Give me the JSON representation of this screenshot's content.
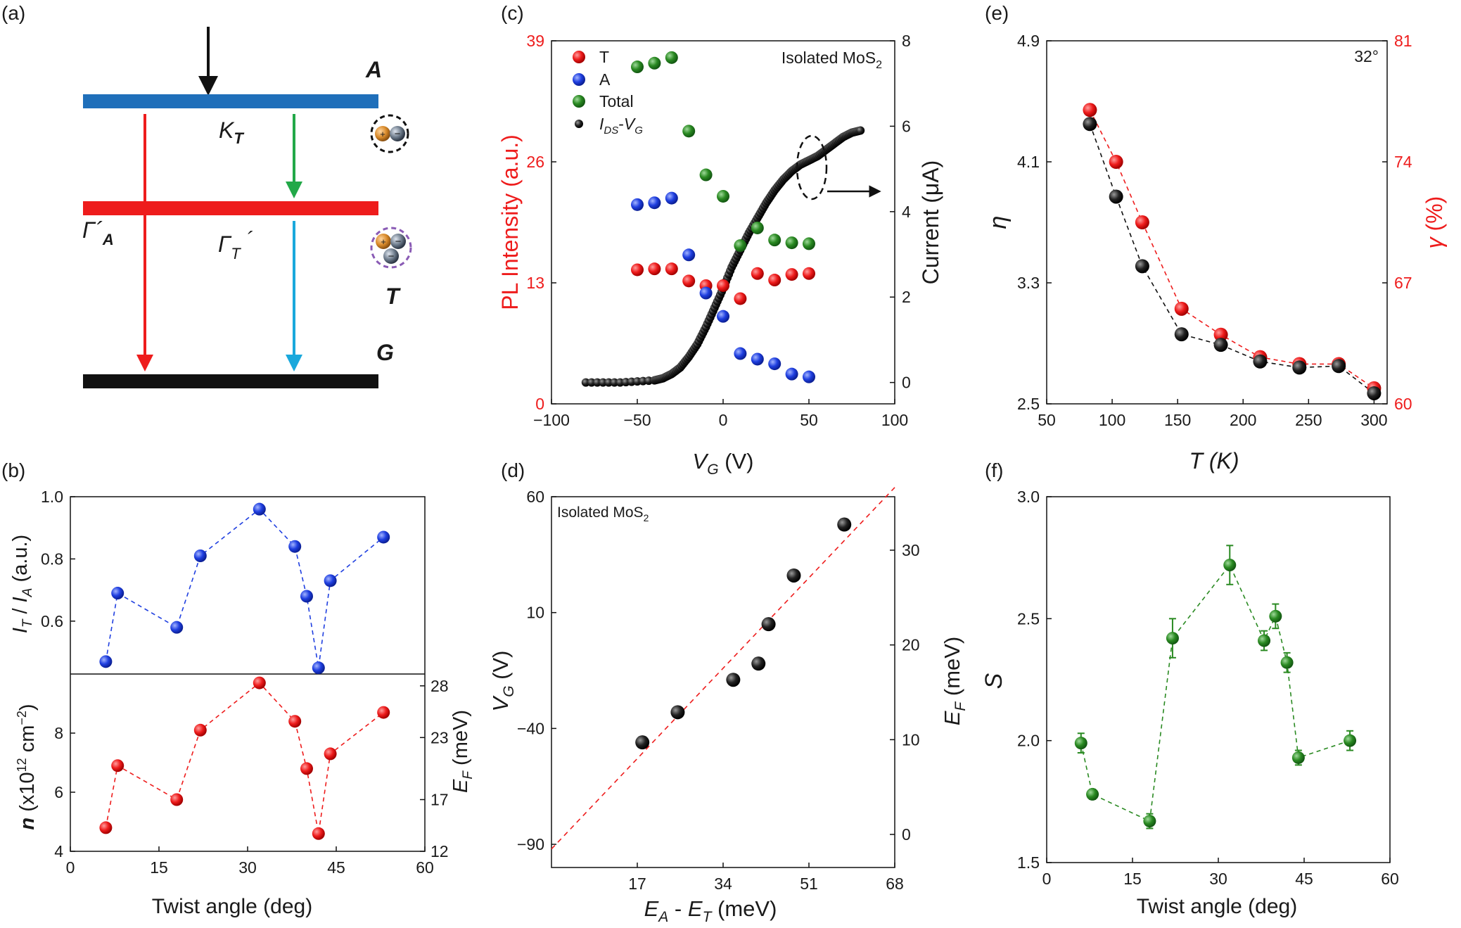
{
  "colors": {
    "red": "#ee1c1c",
    "blue": "#1f3fe0",
    "green": "#2a8a22",
    "black": "#111111",
    "levelA": "#1f6fba",
    "levelT": "#ee1c1c",
    "arrowGreen": "#22a848",
    "arrowCyan": "#1aa8dc"
  },
  "panels": {
    "a": "(a)",
    "b": "(b)",
    "c": "(c)",
    "d": "(d)",
    "e": "(e)",
    "f": "(f)"
  },
  "diagram": {
    "level_A": "A",
    "level_T": "T",
    "level_G": "G",
    "rate_K": "K",
    "rate_K_sub": "T",
    "rate_GA": "Γ´",
    "rate_GA_sub": "A",
    "rate_GT": "Γ",
    "rate_GT_sub": "T",
    "rate_GT_tail": "´"
  },
  "chart_data": [
    {
      "id": "b_top",
      "type": "scatter",
      "x": [
        6,
        8,
        18,
        22,
        32,
        38,
        40,
        42,
        44,
        53
      ],
      "series": [
        {
          "values": [
            0.47,
            0.69,
            0.58,
            0.81,
            0.96,
            0.84,
            0.68,
            0.45,
            0.73,
            0.87
          ]
        }
      ],
      "ylim": [
        0.43,
        1.0
      ],
      "xlim": [
        0,
        60
      ],
      "yticks": [
        "0.6",
        "0.8",
        "1.0"
      ],
      "ylabel": "I_T / I_A (a.u.)"
    },
    {
      "id": "b_bottom",
      "type": "scatter",
      "x": [
        6,
        8,
        18,
        22,
        32,
        38,
        40,
        42,
        44,
        53
      ],
      "series": [
        {
          "values": [
            4.8,
            6.9,
            5.75,
            8.1,
            9.7,
            8.4,
            6.8,
            4.6,
            7.3,
            8.7
          ]
        }
      ],
      "xlim": [
        0,
        60
      ],
      "ylim": [
        4,
        10
      ],
      "xticks": [
        "0",
        "15",
        "30",
        "45",
        "60"
      ],
      "yticks": [
        "4",
        "6",
        "8"
      ],
      "y2ticks": [
        "12",
        "17",
        "23",
        "28"
      ],
      "xlabel": "Twist angle (deg)",
      "ylabel": "n (x10^12 cm^-2)",
      "y2label": "E_F (meV)"
    },
    {
      "id": "c",
      "type": "scatter",
      "annotation": "Isolated MoS2",
      "xlim": [
        -100,
        100
      ],
      "ylim": [
        0,
        39
      ],
      "y2lim": [
        -0.5,
        8
      ],
      "xticks": [
        "−100",
        "−50",
        "0",
        "50",
        "100"
      ],
      "yticks": [
        "0",
        "13",
        "26",
        "39"
      ],
      "y2ticks": [
        "0",
        "2",
        "4",
        "6",
        "8"
      ],
      "xlabel": "V_G (V)",
      "ylabel": "PL Intensity (a.u.)",
      "y2label": "Current (μA)",
      "series": [
        {
          "name": "T",
          "x": [
            -50,
            -40,
            -30,
            -20,
            -10,
            0,
            10,
            20,
            30,
            40,
            50
          ],
          "values": [
            14.4,
            14.5,
            14.5,
            13.2,
            12.7,
            12.7,
            11.3,
            14.0,
            13.3,
            13.9,
            14.0
          ]
        },
        {
          "name": "A",
          "x": [
            -50,
            -40,
            -30,
            -20,
            -10,
            0,
            10,
            20,
            30,
            40,
            50
          ],
          "values": [
            21.4,
            21.6,
            22.1,
            16.0,
            11.9,
            9.4,
            5.4,
            4.8,
            4.3,
            3.2,
            2.9
          ]
        },
        {
          "name": "Total",
          "x": [
            -50,
            -40,
            -30,
            -20,
            -10,
            0,
            10,
            20,
            30,
            40,
            50
          ],
          "values": [
            36.2,
            36.6,
            37.2,
            29.3,
            24.6,
            22.3,
            17.0,
            18.9,
            17.6,
            17.3,
            17.2
          ]
        },
        {
          "name": "I_DS-V_G",
          "x": [
            -80,
            -60,
            -40,
            -35,
            -30,
            -25,
            -20,
            -15,
            -10,
            -5,
            0,
            5,
            10,
            15,
            20,
            25,
            30,
            35,
            40,
            45,
            50,
            55,
            60,
            65,
            70,
            75,
            80
          ],
          "values": [
            0.0,
            0.0,
            0.05,
            0.1,
            0.2,
            0.35,
            0.6,
            0.9,
            1.3,
            1.75,
            2.2,
            2.7,
            3.1,
            3.5,
            3.85,
            4.2,
            4.5,
            4.75,
            4.95,
            5.1,
            5.2,
            5.3,
            5.45,
            5.6,
            5.75,
            5.85,
            5.9
          ]
        }
      ],
      "arrow_note": "dashed ellipse at 50 V pointing to right axis"
    },
    {
      "id": "d",
      "type": "scatter",
      "annotation": "Isolated MoS2",
      "x": [
        18,
        25,
        36,
        41,
        43,
        48,
        58
      ],
      "values": [
        -46,
        -33,
        -19,
        -12,
        5,
        26,
        48
      ],
      "xlim": [
        0,
        68
      ],
      "ylim": [
        -100,
        60
      ],
      "xticks": [
        "17",
        "34",
        "51",
        "68"
      ],
      "yticks": [
        "−90",
        "−40",
        "10",
        "60"
      ],
      "y2ticks": [
        "0",
        "10",
        "20",
        "30"
      ],
      "xlabel": "E_A - E_T (meV)",
      "ylabel": "V_G (V)",
      "y2label": "E_F (meV)",
      "fit_line": [
        [
          0,
          -92
        ],
        [
          68,
          64
        ]
      ]
    },
    {
      "id": "e",
      "type": "line",
      "annotation": "32°",
      "x": [
        83,
        103,
        123,
        153,
        183,
        213,
        243,
        273,
        300
      ],
      "series": [
        {
          "values": [
            4.35,
            3.87,
            3.41,
            2.96,
            2.89,
            2.78,
            2.74,
            2.75,
            2.57
          ]
        },
        {
          "values": [
            77.0,
            74.0,
            70.5,
            65.5,
            64.0,
            62.7,
            62.3,
            62.3,
            60.9
          ]
        }
      ],
      "xlim": [
        50,
        310
      ],
      "ylim": [
        2.5,
        4.9
      ],
      "y2lim": [
        60,
        81
      ],
      "xticks": [
        "50",
        "100",
        "150",
        "200",
        "250",
        "300"
      ],
      "yticks": [
        "2.5",
        "3.3",
        "4.1",
        "4.9"
      ],
      "y2ticks": [
        "60",
        "67",
        "74",
        "81"
      ],
      "xlabel": "T (K)",
      "ylabel": "η",
      "y2label": "γ (%)"
    },
    {
      "id": "f",
      "type": "scatter",
      "x": [
        6,
        8,
        18,
        22,
        32,
        38,
        40,
        42,
        44,
        53
      ],
      "values": [
        1.99,
        1.78,
        1.67,
        2.42,
        2.72,
        2.41,
        2.51,
        2.32,
        1.93,
        2.0
      ],
      "errors": [
        0.04,
        0.02,
        0.03,
        0.08,
        0.08,
        0.04,
        0.05,
        0.04,
        0.03,
        0.04
      ],
      "xlim": [
        0,
        60
      ],
      "ylim": [
        1.5,
        3.0
      ],
      "xticks": [
        "0",
        "15",
        "30",
        "45",
        "60"
      ],
      "yticks": [
        "1.5",
        "2.0",
        "2.5",
        "3.0"
      ],
      "xlabel": "Twist angle (deg)",
      "ylabel": "S"
    }
  ]
}
